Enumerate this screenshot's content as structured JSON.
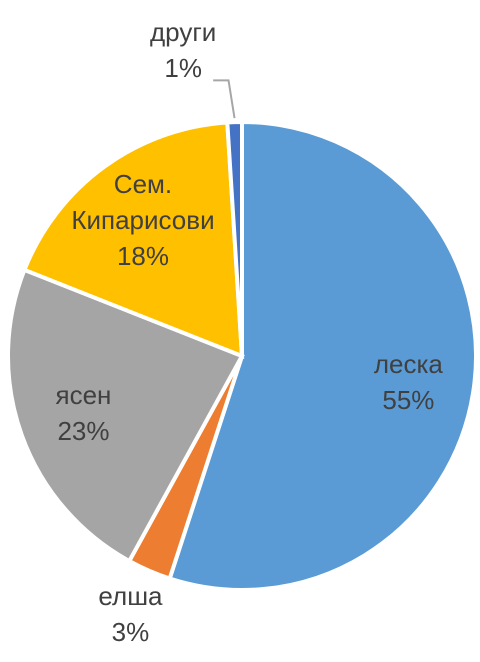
{
  "chart_data": {
    "type": "pie",
    "categories": [
      "леска",
      "елша",
      "ясен",
      "Сем. Кипарисови",
      "други"
    ],
    "values": [
      55,
      3,
      23,
      18,
      1
    ],
    "value_labels": [
      "55%",
      "3%",
      "23%",
      "18%",
      "1%"
    ],
    "colors": [
      "#5b9bd5",
      "#ed7d31",
      "#a5a5a5",
      "#ffc000",
      "#4472c4"
    ]
  }
}
